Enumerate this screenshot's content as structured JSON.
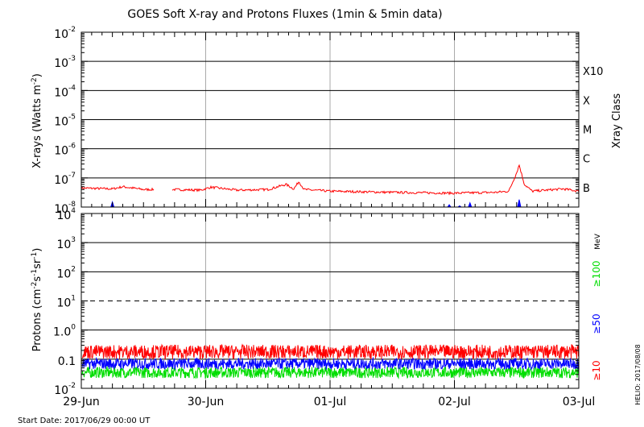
{
  "title": "GOES Soft X-ray and Protons Fluxes   (1min & 5min data)",
  "start_date": "Start Date: 2017/06/29 00:00 UT",
  "credit": "HELIO: 2017/08/08",
  "colors": {
    "xray_long": "#ff0000",
    "xray_short": "#0000ff",
    "p10": "#ff0000",
    "p50": "#0000ff",
    "p100": "#00dd00",
    "vgrid": "#aaaaaa"
  },
  "chart_data": [
    {
      "type": "line",
      "name": "xrays",
      "ylabel_prefix": "X-rays (Watts m",
      "ylabel_exp": "-2",
      "ylabel_suffix": ")",
      "yscale": "log",
      "ylim": [
        1e-08,
        0.01
      ],
      "ytick_exponents": [
        "-2",
        "-3",
        "-4",
        "-5",
        "-6",
        "-7",
        "-8"
      ],
      "right_axis_label": "Xray Class",
      "class_labels": [
        "X10",
        "X",
        "M",
        "C",
        "B"
      ],
      "x_range": [
        "2017-06-29T00:00",
        "2017-07-03T00:00"
      ],
      "series": [
        {
          "color_key": "xray_long",
          "points": [
            [
              "2017-06-29T00:00",
              4.5e-08
            ],
            [
              "2017-06-29T06:00",
              4.2e-08
            ],
            [
              "2017-06-29T08:00",
              5e-08
            ],
            [
              "2017-06-29T12:00",
              4e-08
            ],
            [
              "2017-06-29T14:00",
              4e-08
            ],
            [
              "2017-06-29T17:30",
              4e-08
            ],
            [
              "2017-06-29T23:00",
              3.8e-08
            ],
            [
              "2017-06-30T01:00",
              4.8e-08
            ],
            [
              "2017-06-30T06:00",
              3.8e-08
            ],
            [
              "2017-06-30T12:00",
              4e-08
            ],
            [
              "2017-06-30T15:30",
              6e-08
            ],
            [
              "2017-06-30T17:00",
              4.2e-08
            ],
            [
              "2017-06-30T18:00",
              7.5e-08
            ],
            [
              "2017-06-30T19:00",
              4e-08
            ],
            [
              "2017-07-01T00:00",
              3.5e-08
            ],
            [
              "2017-07-01T12:00",
              3.2e-08
            ],
            [
              "2017-07-02T00:00",
              3e-08
            ],
            [
              "2017-07-02T08:00",
              3.2e-08
            ],
            [
              "2017-07-02T10:30",
              3.5e-08
            ],
            [
              "2017-07-02T12:00",
              1.5e-07
            ],
            [
              "2017-07-02T12:30",
              2.8e-07
            ],
            [
              "2017-07-02T13:30",
              6e-08
            ],
            [
              "2017-07-02T15:00",
              3.5e-08
            ],
            [
              "2017-07-02T21:00",
              4.2e-08
            ],
            [
              "2017-07-03T00:00",
              3.5e-08
            ]
          ]
        },
        {
          "color_key": "xray_short",
          "points": [
            [
              "2017-06-29T06:00",
              1.5e-08
            ],
            [
              "2017-07-01T23:00",
              1.2e-08
            ],
            [
              "2017-07-02T01:00",
              1.1e-08
            ],
            [
              "2017-07-02T03:00",
              1.4e-08
            ],
            [
              "2017-07-02T12:30",
              1.8e-08
            ]
          ]
        }
      ]
    },
    {
      "type": "line",
      "name": "protons",
      "ylabel_prefix": "Protons (cm",
      "ylabel_exp1": "-2",
      "ylabel_mid1": "s",
      "ylabel_exp2": "-1",
      "ylabel_mid2": "sr",
      "ylabel_exp3": "-1",
      "ylabel_suffix": ")",
      "yscale": "log",
      "ylim": [
        0.01,
        10000
      ],
      "ytick_labels": [
        {
          "base": "10",
          "exp": "4"
        },
        {
          "base": "10",
          "exp": "3"
        },
        {
          "base": "10",
          "exp": "2"
        },
        {
          "base": "10",
          "exp": "1"
        },
        {
          "base": "1.0",
          "exp": "0"
        },
        {
          "base": "0.1",
          "exp": ""
        },
        {
          "base": "10",
          "exp": "-2"
        }
      ],
      "threshold": 10,
      "unit_label": "MeV",
      "legend": [
        "≥100",
        "≥50",
        "≥10"
      ],
      "series": [
        {
          "name": "≥10",
          "color_key": "p10",
          "typical": 0.18,
          "range": [
            0.1,
            0.4
          ]
        },
        {
          "name": "≥50",
          "color_key": "p50",
          "typical": 0.07,
          "range": [
            0.04,
            0.12
          ]
        },
        {
          "name": "≥100",
          "color_key": "p100",
          "typical": 0.035,
          "range": [
            0.02,
            0.06
          ]
        }
      ]
    }
  ],
  "x_ticks": [
    "29-Jun",
    "30-Jun",
    "01-Jul",
    "02-Jul",
    "03-Jul"
  ]
}
